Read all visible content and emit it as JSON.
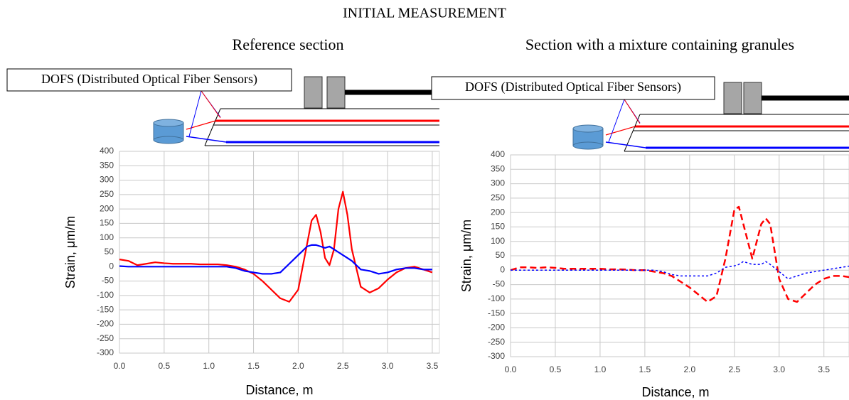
{
  "title": "INITIAL MEASUREMENT",
  "chart_data": [
    {
      "type": "line",
      "title": "Reference section",
      "annotation": "DOFS (Distributed Optical Fiber Sensors)",
      "xlabel": "Distance, m",
      "ylabel": "Strain, μm/m",
      "x": [
        0,
        0.1,
        0.2,
        0.3,
        0.4,
        0.5,
        0.6,
        0.7,
        0.8,
        0.9,
        1.0,
        1.1,
        1.2,
        1.3,
        1.4,
        1.5,
        1.6,
        1.7,
        1.8,
        1.9,
        2.0,
        2.1,
        2.15,
        2.2,
        2.25,
        2.3,
        2.35,
        2.4,
        2.45,
        2.5,
        2.55,
        2.6,
        2.7,
        2.8,
        2.9,
        3.0,
        3.1,
        3.2,
        3.3,
        3.4,
        3.5
      ],
      "series": [
        {
          "color": "#ff0000",
          "style": "solid",
          "values": [
            25,
            20,
            5,
            10,
            15,
            12,
            10,
            10,
            10,
            8,
            8,
            8,
            5,
            0,
            -10,
            -25,
            -50,
            -80,
            -110,
            -122,
            -80,
            80,
            160,
            180,
            120,
            30,
            5,
            60,
            200,
            260,
            180,
            60,
            -70,
            -90,
            -75,
            -45,
            -20,
            -5,
            0,
            -10,
            -20
          ]
        },
        {
          "color": "#0000ff",
          "style": "solid",
          "values": [
            2,
            0,
            0,
            0,
            0,
            0,
            0,
            0,
            0,
            0,
            0,
            0,
            0,
            -5,
            -15,
            -20,
            -25,
            -25,
            -20,
            10,
            40,
            70,
            75,
            75,
            70,
            65,
            70,
            60,
            50,
            40,
            30,
            20,
            -10,
            -15,
            -25,
            -20,
            -10,
            -5,
            -5,
            -10,
            -10
          ]
        }
      ],
      "xlim": [
        0,
        3.58
      ],
      "ylim": [
        -300,
        400
      ],
      "xticks": [
        {
          "value": 0,
          "label": "0.0"
        },
        0.5,
        {
          "value": 1,
          "label": "1.0"
        },
        1.5,
        {
          "value": 2,
          "label": "2.0"
        },
        2.5,
        {
          "value": 3,
          "label": "3.0"
        },
        3.5
      ],
      "yticks": [
        -300,
        -250,
        -200,
        -150,
        -100,
        -50,
        0,
        50,
        100,
        150,
        200,
        250,
        300,
        350,
        400
      ],
      "grid": true
    },
    {
      "type": "line",
      "title": "Section with a mixture containing granules",
      "annotation": "DOFS (Distributed Optical Fiber Sensors)",
      "xlabel": "Distance, m",
      "ylabel": "Strain, μm/m",
      "x": [
        0,
        0.1,
        0.2,
        0.3,
        0.4,
        0.5,
        0.6,
        0.7,
        0.8,
        0.9,
        1.0,
        1.1,
        1.2,
        1.3,
        1.4,
        1.5,
        1.6,
        1.7,
        1.8,
        1.9,
        2.0,
        2.1,
        2.2,
        2.3,
        2.4,
        2.5,
        2.55,
        2.6,
        2.7,
        2.8,
        2.85,
        2.9,
        3.0,
        3.1,
        3.2,
        3.3,
        3.4,
        3.5,
        3.6,
        3.7,
        3.8
      ],
      "series": [
        {
          "color": "#ff0000",
          "style": "dashed",
          "values": [
            0,
            10,
            10,
            8,
            10,
            8,
            5,
            5,
            5,
            5,
            5,
            3,
            3,
            2,
            0,
            0,
            -5,
            -10,
            -20,
            -40,
            -60,
            -85,
            -110,
            -90,
            40,
            210,
            220,
            160,
            40,
            160,
            180,
            160,
            -30,
            -100,
            -110,
            -80,
            -50,
            -30,
            -20,
            -20,
            -25
          ]
        },
        {
          "color": "#0000ff",
          "style": "dotted",
          "values": [
            0,
            0,
            0,
            0,
            0,
            0,
            0,
            0,
            0,
            0,
            0,
            0,
            0,
            0,
            0,
            0,
            0,
            -5,
            -15,
            -20,
            -20,
            -20,
            -20,
            -10,
            10,
            15,
            20,
            30,
            20,
            20,
            30,
            20,
            -5,
            -30,
            -20,
            -10,
            -5,
            0,
            5,
            10,
            15
          ]
        }
      ],
      "xlim": [
        0,
        3.78
      ],
      "ylim": [
        -300,
        400
      ],
      "xticks": [
        {
          "value": 0,
          "label": "0.0"
        },
        0.5,
        {
          "value": 1,
          "label": "1.0"
        },
        1.5,
        {
          "value": 2,
          "label": "2.0"
        },
        2.5,
        {
          "value": 3,
          "label": "3.0"
        },
        3.5
      ],
      "yticks": [
        -300,
        -250,
        -200,
        -150,
        -100,
        -50,
        0,
        50,
        100,
        150,
        200,
        250,
        300,
        350,
        400
      ],
      "grid": true
    }
  ]
}
